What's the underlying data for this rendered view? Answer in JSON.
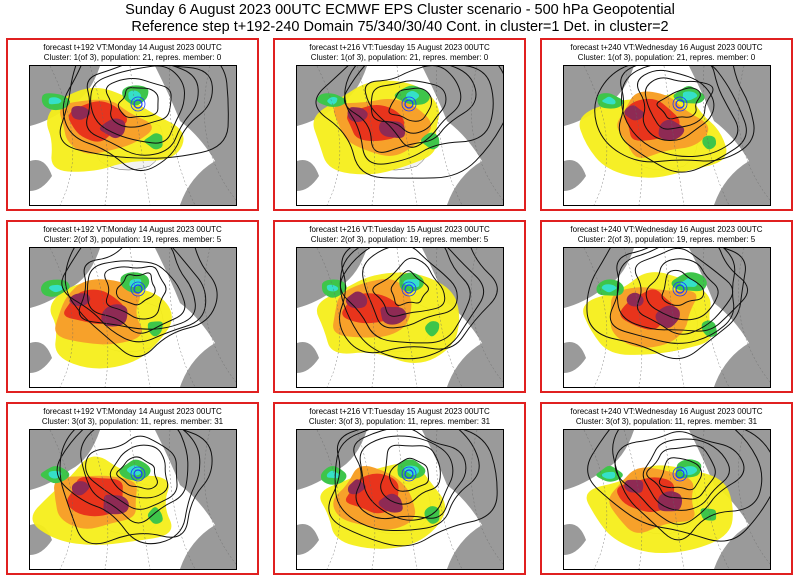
{
  "header": {
    "title_line1": "Sunday 6 August 2023 00UTC ECMWF EPS Cluster scenario - 500 hPa Geopotential",
    "title_line2": "Reference step t+192-240 Domain 75/340/30/40 Cont. in cluster=1 Det. in cluster=2"
  },
  "colors": {
    "panel_border": "#e02020",
    "land": "#9a9a9a",
    "ocean": "#ffffff",
    "anomaly_yellow": "#f5ee1a",
    "anomaly_orange": "#f7a12a",
    "anomaly_red": "#e8341c",
    "anomaly_purple": "#8e2a54",
    "anomaly_green": "#3ec54a",
    "anomaly_cyan": "#35e0c8"
  },
  "panels": [
    {
      "title": "forecast t+192 VT:Monday 14 August 2023 00UTC",
      "cluster": "Cluster: 1(of 3), population: 21, repres. member: 0"
    },
    {
      "title": "forecast t+216 VT:Tuesday 15 August 2023 00UTC",
      "cluster": "Cluster: 1(of 3), population: 21, repres. member: 0"
    },
    {
      "title": "forecast t+240 VT:Wednesday 16 August 2023 00UTC",
      "cluster": "Cluster: 1(of 3), population: 21, repres. member: 0"
    },
    {
      "title": "forecast t+192 VT:Monday 14 August 2023 00UTC",
      "cluster": "Cluster: 2(of 3), population: 19, repres. member: 5"
    },
    {
      "title": "forecast t+216 VT:Tuesday 15 August 2023 00UTC",
      "cluster": "Cluster: 2(of 3), population: 19, repres. member: 5"
    },
    {
      "title": "forecast t+240 VT:Wednesday 16 August 2023 00UTC",
      "cluster": "Cluster: 2(of 3), population: 19, repres. member: 5"
    },
    {
      "title": "forecast t+192 VT:Monday 14 August 2023 00UTC",
      "cluster": "Cluster: 3(of 3), population: 11, repres. member: 31"
    },
    {
      "title": "forecast t+216 VT:Tuesday 15 August 2023 00UTC",
      "cluster": "Cluster: 3(of 3), population: 11, repres. member: 31"
    },
    {
      "title": "forecast t+240 VT:Wednesday 16 August 2023 00UTC",
      "cluster": "Cluster: 3(of 3), population: 11, repres. member: 31"
    }
  ]
}
